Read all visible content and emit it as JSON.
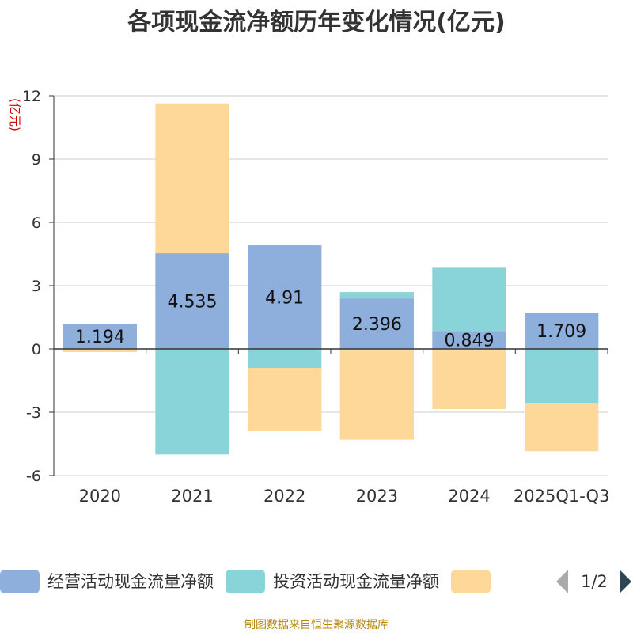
{
  "chart_data": {
    "type": "bar",
    "stacked": true,
    "title": "各项现金流净额历年变化情况(亿元)",
    "ylabel": "(亿元)",
    "ylim": [
      -6,
      12
    ],
    "yticks": [
      12,
      9,
      6,
      3,
      0,
      -3,
      -6
    ],
    "categories": [
      "2020",
      "2021",
      "2022",
      "2023",
      "2024",
      "2025Q1-Q3"
    ],
    "series": [
      {
        "name": "经营活动现金流量净额",
        "color": "#8eaedb",
        "values": [
          1.194,
          4.535,
          4.91,
          2.396,
          0.849,
          1.709
        ],
        "labels": [
          "1.194",
          "4.535",
          "4.91",
          "2.396",
          "0.849",
          "1.709"
        ]
      },
      {
        "name": "投资活动现金流量净额",
        "color": "#88d4d8",
        "values": [
          0.0,
          -5.0,
          -0.9,
          0.3,
          3.0,
          -2.55
        ]
      },
      {
        "name": "",
        "color": "#fdd898",
        "values": [
          -0.15,
          7.1,
          -3.0,
          -4.3,
          -2.85,
          -2.3
        ]
      }
    ],
    "legend": {
      "position": "bottom",
      "page": "1/2"
    },
    "source": "制图数据来自恒生聚源数据库"
  }
}
